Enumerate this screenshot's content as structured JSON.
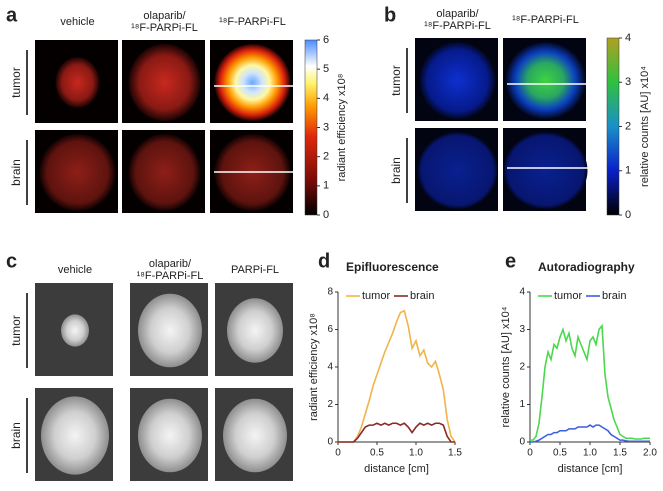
{
  "figure": {
    "labels": [
      "a",
      "b",
      "c",
      "d",
      "e"
    ],
    "a": {
      "columns": [
        [
          "vehicle"
        ],
        [
          "olaparib/",
          "¹⁸F-PARPi-FL"
        ],
        [
          "¹⁸F-PARPi-FL"
        ]
      ],
      "rows": [
        "tumor",
        "brain"
      ],
      "colorbar": {
        "label": "radiant efficiency x10⁸",
        "ticks": [
          0,
          1,
          2,
          3,
          4,
          5,
          6
        ]
      }
    },
    "b": {
      "columns": [
        [
          "olaparib/",
          "¹⁸F-PARPi-FL"
        ],
        [
          "¹⁸F-PARPi-FL"
        ]
      ],
      "rows": [
        "tumor",
        "brain"
      ],
      "colorbar": {
        "label": "relative counts [AU] x10⁴",
        "ticks": [
          0,
          1,
          2,
          3,
          4
        ]
      }
    },
    "c": {
      "columns": [
        [
          "vehicle"
        ],
        [
          "olaparib/",
          "¹⁸F-PARPi-FL"
        ],
        [
          "PARPi-FL"
        ]
      ],
      "rows": [
        "tumor",
        "brain"
      ]
    }
  },
  "chart_data": [
    {
      "type": "line",
      "title": "Epifluorescence",
      "xlabel": "distance [cm]",
      "ylabel": "radiant efficiency x10⁸",
      "xlim": [
        0,
        1.5
      ],
      "xticks": [
        0,
        0.5,
        {
          "value": 1,
          "label": "1.0"
        },
        1.5
      ],
      "ylim": [
        0,
        8
      ],
      "yticks": [
        0,
        2,
        4,
        6,
        8
      ],
      "legend": "top",
      "x": [
        0,
        0.05,
        0.1,
        0.15,
        0.2,
        0.25,
        0.3,
        0.35,
        0.4,
        0.45,
        0.5,
        0.55,
        0.6,
        0.65,
        0.7,
        0.75,
        0.8,
        0.85,
        0.9,
        0.95,
        1,
        1.05,
        1.1,
        1.15,
        1.2,
        1.25,
        1.3,
        1.35,
        1.4,
        1.45,
        1.5
      ],
      "series": [
        {
          "name": "tumor",
          "color": "#f0b44a",
          "values": [
            0,
            0,
            0,
            0,
            0,
            0.3,
            0.8,
            1.5,
            2.2,
            3.0,
            3.6,
            4.2,
            4.8,
            5.3,
            5.8,
            6.4,
            6.9,
            7.0,
            6.2,
            5.0,
            5.4,
            4.6,
            4.9,
            4.2,
            4.0,
            4.3,
            3.6,
            2.8,
            1.2,
            0.3,
            0
          ]
        },
        {
          "name": "brain",
          "color": "#8b2a2a",
          "values": [
            0,
            0,
            0,
            0,
            0,
            0.2,
            0.5,
            0.8,
            0.9,
            0.9,
            1.0,
            0.9,
            1.0,
            0.9,
            1.0,
            1.0,
            0.9,
            1.0,
            0.8,
            0.5,
            0.8,
            1.0,
            0.9,
            1.0,
            0.9,
            1.0,
            1.0,
            0.9,
            0.3,
            0,
            0
          ]
        }
      ]
    },
    {
      "type": "line",
      "title": "Autoradiography",
      "xlabel": "distance [cm]",
      "ylabel": "relative counts [AU] x10⁴",
      "xlim": [
        0,
        2
      ],
      "xticks": [
        0,
        0.5,
        {
          "value": 1,
          "label": "1.0"
        },
        1.5,
        {
          "value": 2,
          "label": "2.0"
        }
      ],
      "ylim": [
        0,
        4
      ],
      "yticks": [
        0,
        1,
        2,
        3,
        4
      ],
      "legend": "top",
      "x": [
        0,
        0.05,
        0.1,
        0.15,
        0.2,
        0.25,
        0.3,
        0.35,
        0.4,
        0.45,
        0.5,
        0.55,
        0.6,
        0.65,
        0.7,
        0.75,
        0.8,
        0.85,
        0.9,
        0.95,
        1,
        1.05,
        1.1,
        1.15,
        1.2,
        1.25,
        1.3,
        1.35,
        1.4,
        1.45,
        1.5,
        1.55,
        1.6,
        1.65,
        1.7,
        1.75,
        1.8,
        1.85,
        1.9,
        1.95,
        2
      ],
      "series": [
        {
          "name": "tumor",
          "color": "#4cd84c",
          "values": [
            0.05,
            0.05,
            0.15,
            0.5,
            1.2,
            2.0,
            2.4,
            2.2,
            2.6,
            2.5,
            2.8,
            3.0,
            2.7,
            2.9,
            2.5,
            2.3,
            2.8,
            2.6,
            2.4,
            2.2,
            2.7,
            2.8,
            2.6,
            3.0,
            3.1,
            1.8,
            1.2,
            0.9,
            0.6,
            0.4,
            0.2,
            0.15,
            0.1,
            0.1,
            0.1,
            0.08,
            0.08,
            0.08,
            0.1,
            0.1,
            0.1
          ]
        },
        {
          "name": "brain",
          "color": "#3a5fe0",
          "values": [
            0,
            0,
            0.02,
            0.05,
            0.1,
            0.15,
            0.2,
            0.2,
            0.25,
            0.25,
            0.3,
            0.3,
            0.3,
            0.35,
            0.35,
            0.35,
            0.4,
            0.4,
            0.4,
            0.4,
            0.45,
            0.4,
            0.45,
            0.45,
            0.4,
            0.35,
            0.3,
            0.2,
            0.15,
            0.1,
            0.05,
            0.05,
            0.03,
            0.02,
            0.02,
            0.02,
            0.02,
            0.02,
            0.02,
            0.02,
            0.02
          ]
        }
      ]
    }
  ]
}
